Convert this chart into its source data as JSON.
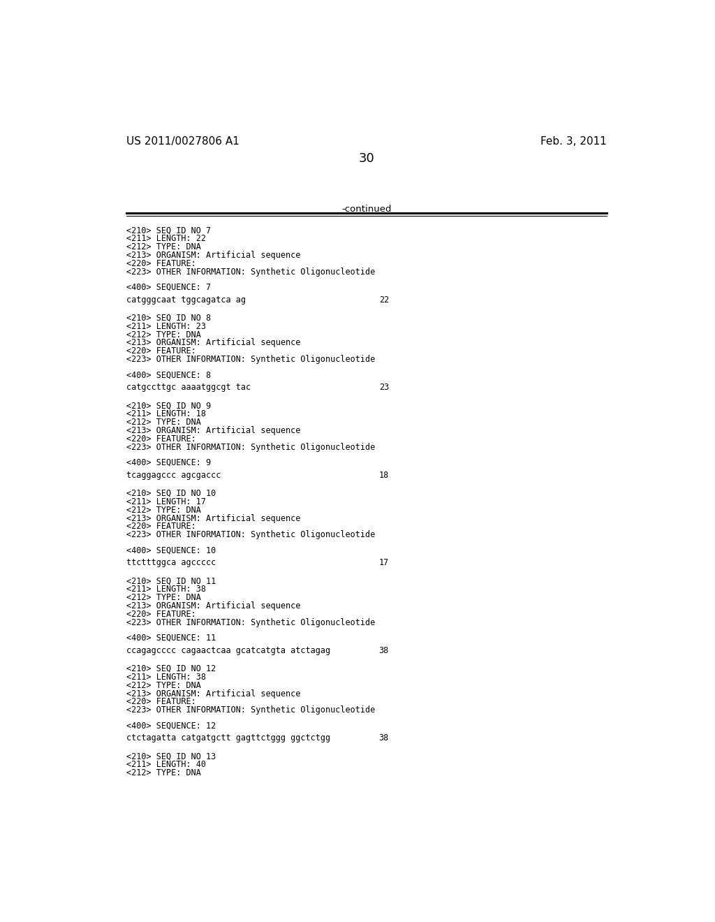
{
  "header_left": "US 2011/0027806 A1",
  "header_right": "Feb. 3, 2011",
  "page_number": "30",
  "continued_label": "-continued",
  "background_color": "#ffffff",
  "text_color": "#000000",
  "line_color": "#000000",
  "entries": [
    {
      "seq_id": "7",
      "length": "22",
      "type": "DNA",
      "organism": "Artificial sequence",
      "other_info": "Synthetic Oligonucleotide",
      "sequence_num": "7",
      "sequence": "catgggcaat tggcagatca ag",
      "seq_length_num": "22"
    },
    {
      "seq_id": "8",
      "length": "23",
      "type": "DNA",
      "organism": "Artificial sequence",
      "other_info": "Synthetic Oligonucleotide",
      "sequence_num": "8",
      "sequence": "catgccttgc aaaatggcgt tac",
      "seq_length_num": "23"
    },
    {
      "seq_id": "9",
      "length": "18",
      "type": "DNA",
      "organism": "Artificial sequence",
      "other_info": "Synthetic Oligonucleotide",
      "sequence_num": "9",
      "sequence": "tcaggagccc agcgaccc",
      "seq_length_num": "18"
    },
    {
      "seq_id": "10",
      "length": "17",
      "type": "DNA",
      "organism": "Artificial sequence",
      "other_info": "Synthetic Oligonucleotide",
      "sequence_num": "10",
      "sequence": "ttctttggca agccccc",
      "seq_length_num": "17"
    },
    {
      "seq_id": "11",
      "length": "38",
      "type": "DNA",
      "organism": "Artificial sequence",
      "other_info": "Synthetic Oligonucleotide",
      "sequence_num": "11",
      "sequence": "ccagagcccc cagaactcaa gcatcatgta atctagag",
      "seq_length_num": "38"
    },
    {
      "seq_id": "12",
      "length": "38",
      "type": "DNA",
      "organism": "Artificial sequence",
      "other_info": "Synthetic Oligonucleotide",
      "sequence_num": "12",
      "sequence": "ctctagatta catgatgctt gagttctggg ggctctgg",
      "seq_length_num": "38"
    },
    {
      "seq_id": "13",
      "length": "40",
      "type": "DNA",
      "organism": null,
      "other_info": null,
      "sequence_num": null,
      "sequence": null,
      "seq_length_num": null
    }
  ]
}
